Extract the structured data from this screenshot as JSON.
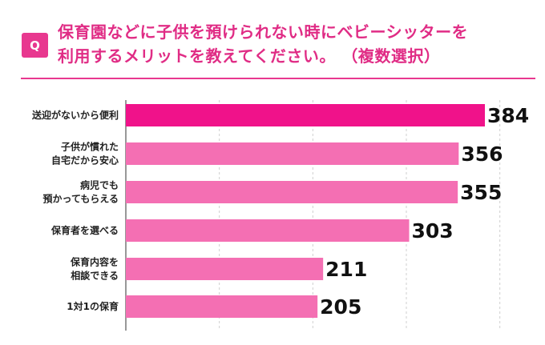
{
  "title": {
    "badge": "Q",
    "line1": "保育園などに子供を預けられない時にベビーシッターを",
    "line2": "利用するメリットを教えてください。 （複数選択）"
  },
  "colors": {
    "accent": "#e8388f",
    "bar_top": "#f0128a",
    "bar": "#f46fb3"
  },
  "chart_data": {
    "type": "bar",
    "orientation": "horizontal",
    "title": "保育園などに子供を預けられない時にベビーシッターを利用するメリットを教えてください。 （複数選択）",
    "categories": [
      [
        "送迎がないから便利"
      ],
      [
        "子供が慣れた",
        "自宅だから安心"
      ],
      [
        "病児でも",
        "預かってもらえる"
      ],
      [
        "保育者を選べる"
      ],
      [
        "保育内容を",
        "相談できる"
      ],
      [
        "1対1の保育"
      ]
    ],
    "values": [
      384,
      356,
      355,
      303,
      211,
      205
    ],
    "value_labels": [
      "384",
      "356",
      "355",
      "303",
      "211",
      "205"
    ],
    "xlim": [
      0,
      400
    ],
    "gridlines": [
      0,
      100,
      200,
      300,
      400
    ],
    "grid": true,
    "legend": "none"
  }
}
